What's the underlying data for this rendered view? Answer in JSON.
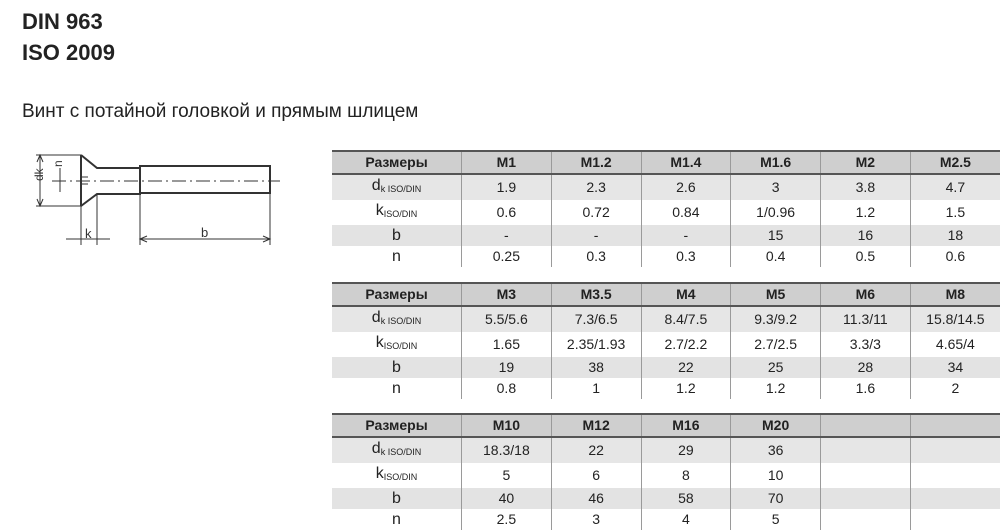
{
  "title": {
    "line1": "DIN 963",
    "line2": "ISO 2009"
  },
  "subtitle": "Винт с потайной головкой и прямым шлицем",
  "drawing": {
    "labels": {
      "dk": "dk",
      "n": "n",
      "k": "k",
      "b": "b"
    }
  },
  "row_labels": {
    "header": "Размеры",
    "dk": "d",
    "dk_sub": "k ISO/DIN",
    "k": "k",
    "k_sub": "ISO/DIN",
    "b": "b",
    "n": "n"
  },
  "tables": [
    {
      "sizes": [
        "M1",
        "M1.2",
        "M1.4",
        "M1.6",
        "M2",
        "M2.5"
      ],
      "dk": [
        "1.9",
        "2.3",
        "2.6",
        "3",
        "3.8",
        "4.7"
      ],
      "k": [
        "0.6",
        "0.72",
        "0.84",
        "1/0.96",
        "1.2",
        "1.5"
      ],
      "b": [
        "-",
        "-",
        "-",
        "15",
        "16",
        "18"
      ],
      "n": [
        "0.25",
        "0.3",
        "0.3",
        "0.4",
        "0.5",
        "0.6"
      ]
    },
    {
      "sizes": [
        "M3",
        "M3.5",
        "M4",
        "M5",
        "M6",
        "M8"
      ],
      "dk": [
        "5.5/5.6",
        "7.3/6.5",
        "8.4/7.5",
        "9.3/9.2",
        "11.3/11",
        "15.8/14.5"
      ],
      "k": [
        "1.65",
        "2.35/1.93",
        "2.7/2.2",
        "2.7/2.5",
        "3.3/3",
        "4.65/4"
      ],
      "b": [
        "19",
        "38",
        "22",
        "25",
        "28",
        "34"
      ],
      "n": [
        "0.8",
        "1",
        "1.2",
        "1.2",
        "1.6",
        "2"
      ]
    },
    {
      "sizes": [
        "M10",
        "M12",
        "M16",
        "M20",
        "",
        ""
      ],
      "dk": [
        "18.3/18",
        "22",
        "29",
        "36",
        "",
        ""
      ],
      "k": [
        "5",
        "6",
        "8",
        "10",
        "",
        ""
      ],
      "b": [
        "40",
        "46",
        "58",
        "70",
        "",
        ""
      ],
      "n": [
        "2.5",
        "3",
        "4",
        "5",
        "",
        ""
      ]
    }
  ]
}
